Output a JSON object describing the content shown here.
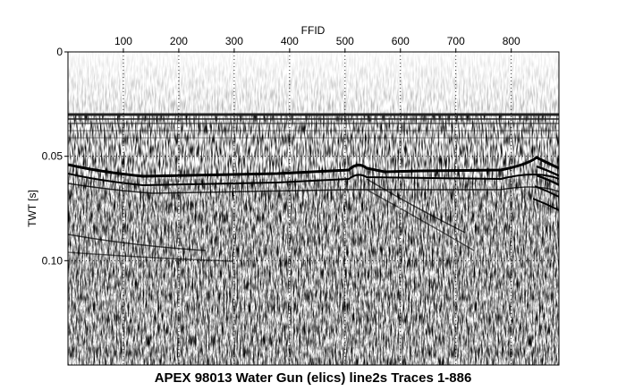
{
  "chart_data": {
    "type": "heatmap",
    "title": "APEX 98013 Water Gun (elics) line2s Traces 1-886",
    "xlabel": "FFID",
    "ylabel": "TWT [s]",
    "xlim": [
      0,
      886
    ],
    "xticks": [
      100,
      200,
      300,
      400,
      500,
      600,
      700,
      800
    ],
    "ylim": [
      0,
      0.15
    ],
    "yticks": [
      0,
      0.05,
      {
        "value": 0.1,
        "label": "0.10"
      }
    ],
    "y_inverted": true,
    "x_axis_position": "top",
    "grid": true
  }
}
